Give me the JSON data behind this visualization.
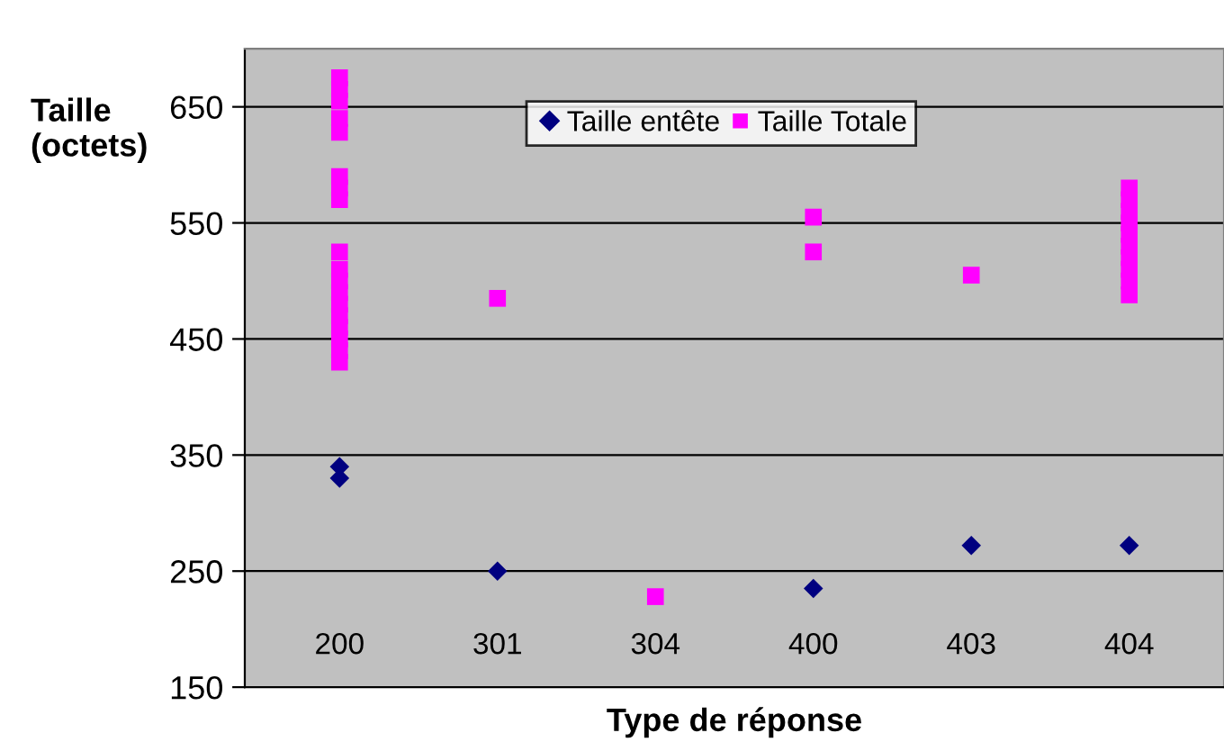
{
  "chart_data": {
    "type": "scatter",
    "xlabel": "Type de réponse",
    "ylabel": "Taille\n(octets)",
    "categories": [
      "200",
      "301",
      "304",
      "400",
      "403",
      "404"
    ],
    "ylim": [
      150,
      700
    ],
    "yticks": [
      150,
      250,
      350,
      450,
      550,
      650
    ],
    "grid": "y",
    "legend": "top right",
    "series": [
      {
        "name": "Taille entête",
        "color": "#000080",
        "marker": "diamond",
        "x": [
          "200",
          "200",
          "301",
          "400",
          "403",
          "404"
        ],
        "values": [
          340,
          330,
          250,
          235,
          272,
          272
        ]
      },
      {
        "name": "Taille Totale",
        "color": "#ff00ff",
        "marker": "square",
        "x": [
          "200",
          "200",
          "200",
          "200",
          "200",
          "200",
          "200",
          "200",
          "200",
          "200",
          "200",
          "200",
          "200",
          "200",
          "200",
          "200",
          "200",
          "200",
          "301",
          "304",
          "400",
          "400",
          "403",
          "404",
          "404",
          "404",
          "404",
          "404",
          "404",
          "404",
          "404",
          "404",
          "404"
        ],
        "values": [
          675,
          665,
          655,
          640,
          628,
          590,
          580,
          570,
          525,
          510,
          500,
          490,
          480,
          470,
          460,
          450,
          440,
          430,
          485,
          228,
          555,
          525,
          505,
          580,
          570,
          560,
          550,
          540,
          530,
          520,
          510,
          500,
          488
        ]
      }
    ]
  }
}
